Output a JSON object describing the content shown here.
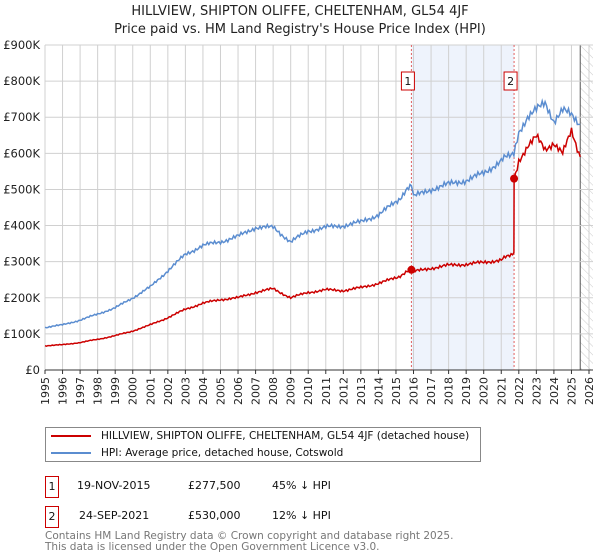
{
  "chart_data": {
    "type": "line",
    "title": "HILLVIEW, SHIPTON OLIFFE, CHELTENHAM, GL54 4JF",
    "subtitle": "Price paid vs. HM Land Registry's House Price Index (HPI)",
    "xlim": [
      1995,
      2026
    ],
    "ylim": [
      0,
      900000
    ],
    "yticks": [
      0,
      100000,
      200000,
      300000,
      400000,
      500000,
      600000,
      700000,
      800000,
      900000
    ],
    "ytick_labels": [
      "£0",
      "£100K",
      "£200K",
      "£300K",
      "£400K",
      "£500K",
      "£600K",
      "£700K",
      "£800K",
      "£900K"
    ],
    "xticks": [
      "1995",
      "1996",
      "1997",
      "1998",
      "1999",
      "2000",
      "2001",
      "2002",
      "2003",
      "2004",
      "2005",
      "2006",
      "2007",
      "2008",
      "2009",
      "2010",
      "2011",
      "2012",
      "2013",
      "2014",
      "2015",
      "2016",
      "2017",
      "2018",
      "2019",
      "2020",
      "2021",
      "2022",
      "2023",
      "2024",
      "2025",
      "2026"
    ],
    "grid": true,
    "series": [
      {
        "name": "HILLVIEW, SHIPTON OLIFFE, CHELTENHAM, GL54 4JF (detached house)",
        "color": "#cc0000",
        "x": [
          1995,
          1996,
          1997,
          1998,
          1999,
          2000,
          2001,
          2002,
          2003,
          2004,
          2005,
          2006,
          2007,
          2008,
          2009,
          2010,
          2011,
          2012,
          2013,
          2014,
          2015,
          2015.88,
          2016,
          2017,
          2018,
          2019,
          2020,
          2021,
          2021.72,
          2021.73,
          2022,
          2022.5,
          2023,
          2023.5,
          2024,
          2024.5,
          2025,
          2025.5
        ],
        "values": [
          67000,
          70000,
          76000,
          85000,
          95000,
          108000,
          125000,
          145000,
          168000,
          185000,
          195000,
          200000,
          215000,
          225000,
          200000,
          215000,
          222000,
          220000,
          228000,
          240000,
          255000,
          277500,
          272000,
          282000,
          290000,
          293000,
          298000,
          305000,
          325000,
          530000,
          580000,
          620000,
          645000,
          610000,
          630000,
          600000,
          660000,
          590000
        ]
      },
      {
        "name": "HPI: Average price, detached house, Cotswold",
        "color": "#5b8dd0",
        "x": [
          1995,
          1996,
          1997,
          1998,
          1999,
          2000,
          2001,
          2002,
          2003,
          2004,
          2005,
          2006,
          2007,
          2008,
          2009,
          2010,
          2011,
          2012,
          2013,
          2014,
          2015,
          2015.88,
          2016,
          2017,
          2018,
          2019,
          2020,
          2021,
          2021.72,
          2022,
          2022.5,
          2023,
          2023.5,
          2024,
          2024.5,
          2025,
          2025.5
        ],
        "values": [
          118000,
          125000,
          138000,
          155000,
          172000,
          200000,
          230000,
          275000,
          320000,
          345000,
          355000,
          370000,
          395000,
          395000,
          355000,
          385000,
          395000,
          400000,
          410000,
          430000,
          465000,
          510000,
          480000,
          500000,
          515000,
          525000,
          545000,
          580000,
          605000,
          660000,
          700000,
          720000,
          740000,
          690000,
          720000,
          705000,
          680000
        ]
      }
    ],
    "annotations": [
      {
        "label": "1",
        "x": 2015.88
      },
      {
        "label": "2",
        "x": 2021.73
      }
    ],
    "legend_position": "below"
  },
  "legend": {
    "items": [
      {
        "label": "HILLVIEW, SHIPTON OLIFFE, CHELTENHAM, GL54 4JF (detached house)"
      },
      {
        "label": "HPI: Average price, detached house, Cotswold"
      }
    ]
  },
  "transactions": [
    {
      "num": "1",
      "date": "19-NOV-2015",
      "price": "£277,500",
      "hpi": "45% ↓ HPI"
    },
    {
      "num": "2",
      "date": "24-SEP-2021",
      "price": "£530,000",
      "hpi": "12% ↓ HPI"
    }
  ],
  "footer": {
    "line1": "Contains HM Land Registry data © Crown copyright and database right 2025.",
    "line2": "This data is licensed under the Open Government Licence v3.0."
  }
}
